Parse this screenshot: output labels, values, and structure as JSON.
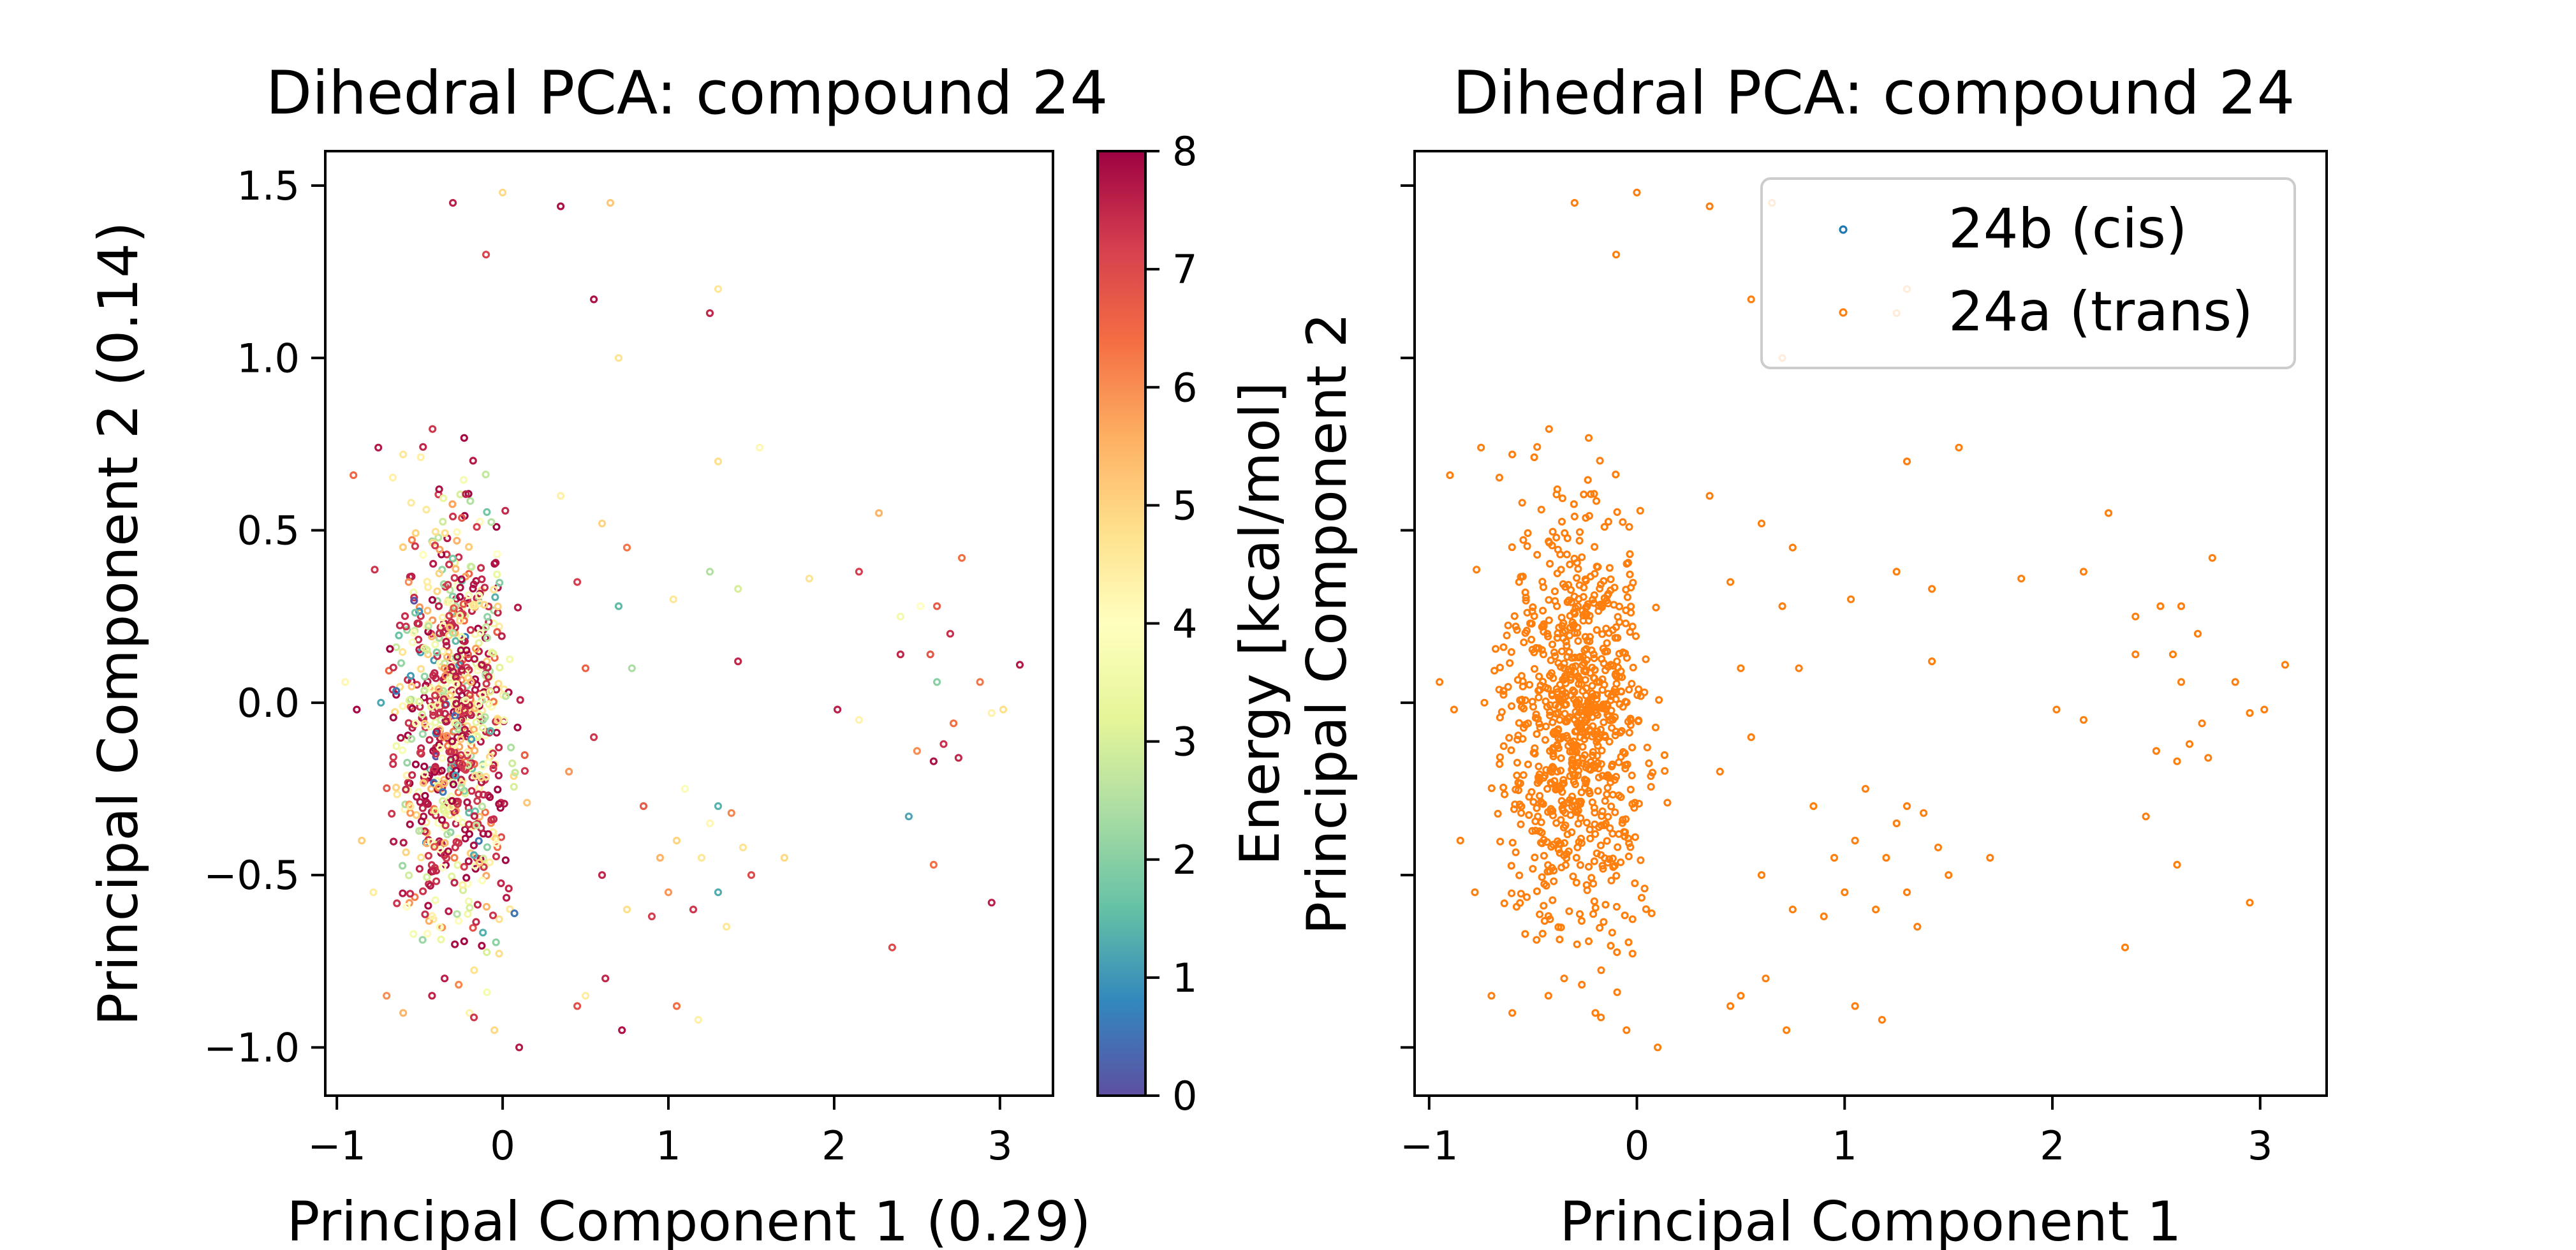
{
  "chart_data": [
    {
      "type": "scatter",
      "title": "Dihedral PCA: compound 24",
      "xlabel": "Principal Component 1 (0.29)",
      "ylabel": "Principal Component 2 (0.14)",
      "xlim": [
        -1.07,
        3.32
      ],
      "ylim": [
        -1.14,
        1.6
      ],
      "xticks": [
        -1,
        0,
        1,
        2,
        3
      ],
      "xtick_labels": [
        "−1",
        "0",
        "1",
        "2",
        "3"
      ],
      "yticks": [
        -1.0,
        -0.5,
        0.0,
        0.5,
        1.0,
        1.5
      ],
      "ytick_labels": [
        "−1.0",
        "−0.5",
        "0.0",
        "0.5",
        "1.0",
        "1.5"
      ],
      "grid": false,
      "colormap": "Spectral_r",
      "colorbar": {
        "label": "Energy [kcal/mol]",
        "min": 0,
        "max": 8,
        "ticks": [
          0,
          1,
          2,
          3,
          4,
          5,
          6,
          7,
          8
        ],
        "tick_labels": [
          "0",
          "1",
          "2",
          "3",
          "4",
          "5",
          "6",
          "7",
          "8"
        ]
      },
      "points_note": "approx. 950 conformers; main cluster at PC1 -0.8..0.3, PC2 -1.0..1.5; secondary clusters near (1.2,-0.4) and (2.7,0.0)",
      "points": [
        [
          -0.3,
          1.45,
          7.6
        ],
        [
          0.0,
          1.48,
          4.9
        ],
        [
          0.35,
          1.44,
          7.8
        ],
        [
          0.65,
          1.45,
          5.2
        ],
        [
          -0.1,
          1.3,
          7.1
        ],
        [
          1.3,
          1.2,
          4.6
        ],
        [
          1.25,
          1.13,
          7.5
        ],
        [
          0.55,
          1.17,
          7.8
        ],
        [
          0.7,
          1.0,
          4.7
        ],
        [
          1.3,
          0.7,
          4.8
        ],
        [
          1.55,
          0.74,
          4.2
        ],
        [
          2.27,
          0.55,
          5.5
        ],
        [
          2.77,
          0.42,
          6.4
        ],
        [
          1.25,
          0.38,
          2.5
        ],
        [
          1.85,
          0.36,
          4.7
        ],
        [
          2.15,
          0.38,
          7.2
        ],
        [
          1.42,
          0.33,
          3.0
        ],
        [
          1.03,
          0.3,
          4.6
        ],
        [
          1.42,
          0.12,
          7.5
        ],
        [
          0.7,
          0.28,
          1.5
        ],
        [
          0.78,
          0.1,
          2.4
        ],
        [
          2.52,
          0.28,
          4.0
        ],
        [
          2.62,
          0.28,
          6.7
        ],
        [
          2.4,
          0.25,
          3.6
        ],
        [
          2.7,
          0.2,
          7.4
        ],
        [
          2.58,
          0.14,
          6.8
        ],
        [
          2.4,
          0.14,
          7.5
        ],
        [
          2.62,
          0.06,
          2.0
        ],
        [
          2.88,
          0.06,
          6.3
        ],
        [
          3.12,
          0.11,
          7.7
        ],
        [
          2.02,
          -0.02,
          7.6
        ],
        [
          2.15,
          -0.05,
          4.3
        ],
        [
          2.72,
          -0.06,
          6.4
        ],
        [
          2.66,
          -0.12,
          7.4
        ],
        [
          2.5,
          -0.14,
          6.0
        ],
        [
          2.75,
          -0.16,
          7.5
        ],
        [
          2.6,
          -0.17,
          7.8
        ],
        [
          2.95,
          -0.03,
          4.3
        ],
        [
          3.02,
          -0.02,
          4.8
        ],
        [
          2.45,
          -0.33,
          1.2
        ],
        [
          2.6,
          -0.47,
          6.4
        ],
        [
          2.95,
          -0.58,
          7.6
        ],
        [
          2.35,
          -0.71,
          7.0
        ],
        [
          1.3,
          -0.3,
          1.4
        ],
        [
          1.1,
          -0.25,
          3.8
        ],
        [
          1.25,
          -0.35,
          4.2
        ],
        [
          1.38,
          -0.32,
          6.1
        ],
        [
          1.05,
          -0.4,
          5.0
        ],
        [
          1.2,
          -0.45,
          4.6
        ],
        [
          0.95,
          -0.45,
          5.5
        ],
        [
          1.45,
          -0.42,
          4.7
        ],
        [
          1.5,
          -0.5,
          7.0
        ],
        [
          1.7,
          -0.45,
          4.9
        ],
        [
          1.0,
          -0.55,
          5.9
        ],
        [
          1.15,
          -0.6,
          7.3
        ],
        [
          1.35,
          -0.65,
          4.6
        ],
        [
          0.9,
          -0.62,
          7.2
        ],
        [
          1.3,
          -0.55,
          1.3
        ],
        [
          0.5,
          -0.85,
          4.5
        ],
        [
          0.62,
          -0.8,
          7.5
        ],
        [
          0.72,
          -0.95,
          7.8
        ],
        [
          1.05,
          -0.88,
          6.4
        ],
        [
          1.18,
          -0.92,
          4.4
        ],
        [
          0.45,
          -0.88,
          6.9
        ],
        [
          0.75,
          -0.6,
          4.8
        ],
        [
          0.6,
          -0.5,
          7.5
        ],
        [
          0.85,
          -0.3,
          6.7
        ],
        [
          0.4,
          -0.2,
          5.9
        ],
        [
          0.55,
          -0.1,
          7.3
        ],
        [
          0.5,
          0.1,
          6.6
        ],
        [
          0.45,
          0.35,
          7.2
        ],
        [
          0.35,
          0.6,
          4.4
        ],
        [
          0.6,
          0.52,
          5.0
        ],
        [
          0.75,
          0.45,
          6.3
        ],
        [
          -0.9,
          0.66,
          6.5
        ],
        [
          -0.75,
          0.74,
          7.7
        ],
        [
          -0.6,
          0.72,
          4.6
        ],
        [
          -0.95,
          0.06,
          4.2
        ],
        [
          -0.88,
          -0.02,
          7.9
        ],
        [
          -0.85,
          -0.4,
          5.1
        ],
        [
          -0.78,
          -0.55,
          4.5
        ],
        [
          -0.7,
          -0.85,
          6.0
        ],
        [
          -0.6,
          -0.9,
          5.5
        ],
        [
          -0.05,
          -0.95,
          4.9
        ],
        [
          0.1,
          -1.0,
          7.7
        ],
        [
          -0.2,
          -0.9,
          4.3
        ],
        [
          -0.35,
          -0.8,
          7.6
        ]
      ]
    },
    {
      "type": "scatter",
      "title": "Dihedral PCA: compound 24",
      "xlabel": "Principal Component 1",
      "ylabel": "Principal Component 2",
      "xlim": [
        -1.07,
        3.32
      ],
      "ylim": [
        -1.14,
        1.6
      ],
      "xticks": [
        -1,
        0,
        1,
        2,
        3
      ],
      "xtick_labels": [
        "−1",
        "0",
        "1",
        "2",
        "3"
      ],
      "yticks": [
        -1.0,
        -0.5,
        0.0,
        0.5,
        1.0,
        1.5
      ],
      "ytick_labels": [],
      "grid": false,
      "legend": {
        "position": "upper right",
        "entries": [
          {
            "name": "24b (cis)",
            "color": "#1f77b4"
          },
          {
            "name": "24a (trans)",
            "color": "#ff7f0e"
          }
        ]
      },
      "series": [
        {
          "name": "24b (cis)",
          "color": "#1f77b4",
          "points": []
        },
        {
          "name": "24a (trans)",
          "color": "#ff7f0e",
          "points_note": "approx. 950 conformers; same coordinates as left panel",
          "points": [
            [
              -0.3,
              1.45
            ],
            [
              0.0,
              1.48
            ],
            [
              0.35,
              1.44
            ],
            [
              0.65,
              1.45
            ],
            [
              -0.1,
              1.3
            ],
            [
              1.3,
              1.2
            ],
            [
              1.25,
              1.13
            ],
            [
              0.55,
              1.17
            ],
            [
              0.7,
              1.0
            ],
            [
              1.3,
              0.7
            ],
            [
              1.55,
              0.74
            ],
            [
              2.27,
              0.55
            ],
            [
              2.77,
              0.42
            ],
            [
              1.25,
              0.38
            ],
            [
              1.85,
              0.36
            ],
            [
              2.15,
              0.38
            ],
            [
              1.42,
              0.33
            ],
            [
              1.03,
              0.3
            ],
            [
              1.42,
              0.12
            ],
            [
              0.7,
              0.28
            ],
            [
              0.78,
              0.1
            ],
            [
              2.52,
              0.28
            ],
            [
              2.62,
              0.28
            ],
            [
              2.4,
              0.25
            ],
            [
              2.7,
              0.2
            ],
            [
              2.58,
              0.14
            ],
            [
              2.4,
              0.14
            ],
            [
              2.62,
              0.06
            ],
            [
              2.88,
              0.06
            ],
            [
              3.12,
              0.11
            ],
            [
              2.02,
              -0.02
            ],
            [
              2.15,
              -0.05
            ],
            [
              2.72,
              -0.06
            ],
            [
              2.66,
              -0.12
            ],
            [
              2.5,
              -0.14
            ],
            [
              2.75,
              -0.16
            ],
            [
              2.6,
              -0.17
            ],
            [
              2.95,
              -0.03
            ],
            [
              3.02,
              -0.02
            ],
            [
              2.45,
              -0.33
            ],
            [
              2.6,
              -0.47
            ],
            [
              2.95,
              -0.58
            ],
            [
              2.35,
              -0.71
            ],
            [
              1.3,
              -0.3
            ],
            [
              1.1,
              -0.25
            ],
            [
              1.25,
              -0.35
            ],
            [
              1.38,
              -0.32
            ],
            [
              1.05,
              -0.4
            ],
            [
              1.2,
              -0.45
            ],
            [
              0.95,
              -0.45
            ],
            [
              1.45,
              -0.42
            ],
            [
              1.5,
              -0.5
            ],
            [
              1.7,
              -0.45
            ],
            [
              1.0,
              -0.55
            ],
            [
              1.15,
              -0.6
            ],
            [
              1.35,
              -0.65
            ],
            [
              0.9,
              -0.62
            ],
            [
              1.3,
              -0.55
            ],
            [
              0.5,
              -0.85
            ],
            [
              0.62,
              -0.8
            ],
            [
              0.72,
              -0.95
            ],
            [
              1.05,
              -0.88
            ],
            [
              1.18,
              -0.92
            ],
            [
              0.45,
              -0.88
            ],
            [
              0.75,
              -0.6
            ],
            [
              0.6,
              -0.5
            ],
            [
              0.85,
              -0.3
            ],
            [
              0.4,
              -0.2
            ],
            [
              0.55,
              -0.1
            ],
            [
              0.5,
              0.1
            ],
            [
              0.45,
              0.35
            ],
            [
              0.35,
              0.6
            ],
            [
              0.6,
              0.52
            ],
            [
              0.75,
              0.45
            ],
            [
              -0.9,
              0.66
            ],
            [
              -0.75,
              0.74
            ],
            [
              -0.6,
              0.72
            ],
            [
              -0.95,
              0.06
            ],
            [
              -0.88,
              -0.02
            ],
            [
              -0.85,
              -0.4
            ],
            [
              -0.78,
              -0.55
            ],
            [
              -0.7,
              -0.85
            ],
            [
              -0.6,
              -0.9
            ],
            [
              -0.05,
              -0.95
            ],
            [
              0.1,
              -1.0
            ],
            [
              -0.2,
              -0.9
            ],
            [
              -0.35,
              -0.8
            ]
          ]
        }
      ]
    }
  ]
}
